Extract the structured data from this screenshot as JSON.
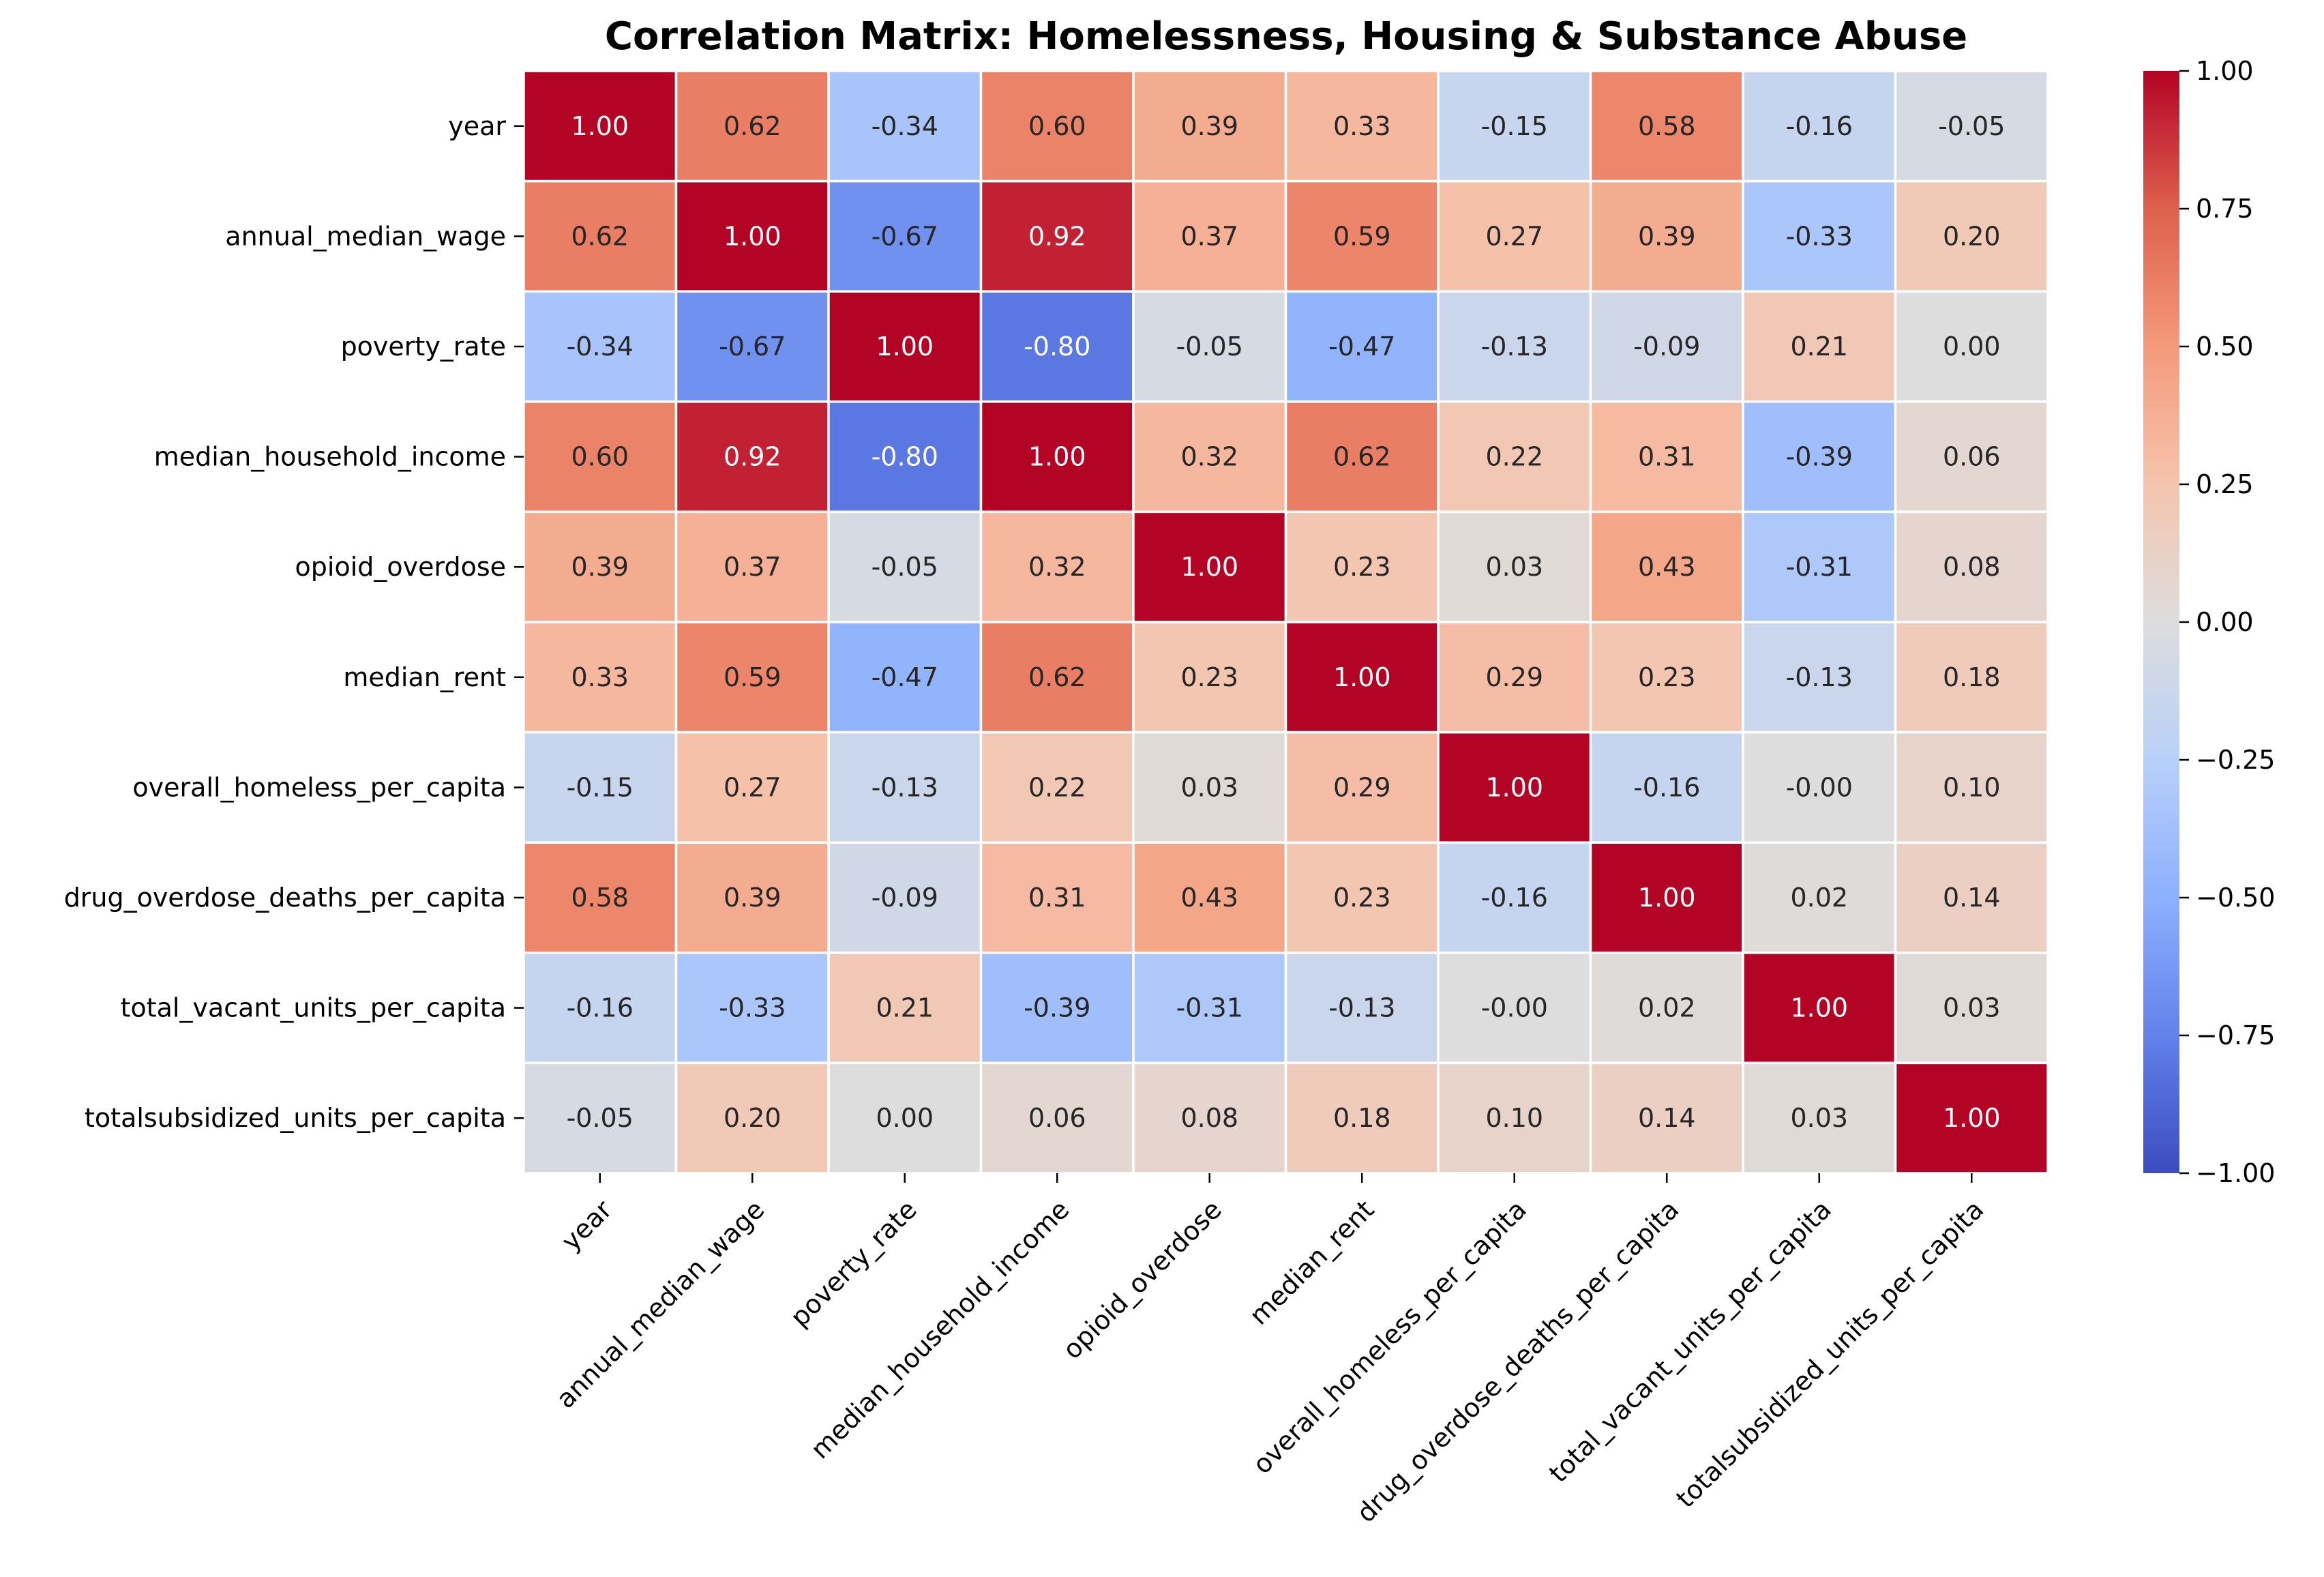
{
  "chart_data": {
    "type": "heatmap",
    "title": "Correlation Matrix: Homelessness, Housing & Substance Abuse",
    "variables": [
      "year",
      "annual_median_wage",
      "poverty_rate",
      "median_household_income",
      "opioid_overdose",
      "median_rent",
      "overall_homeless_per_capita",
      "drug_overdose_deaths_per_capita",
      "total_vacant_units_per_capita",
      "totalsubsidized_units_per_capita"
    ],
    "matrix": [
      [
        1.0,
        0.62,
        -0.34,
        0.6,
        0.39,
        0.33,
        -0.15,
        0.58,
        -0.16,
        -0.05
      ],
      [
        0.62,
        1.0,
        -0.67,
        0.92,
        0.37,
        0.59,
        0.27,
        0.39,
        -0.33,
        0.2
      ],
      [
        -0.34,
        -0.67,
        1.0,
        -0.8,
        -0.05,
        -0.47,
        -0.13,
        -0.09,
        0.21,
        0.0
      ],
      [
        0.6,
        0.92,
        -0.8,
        1.0,
        0.32,
        0.62,
        0.22,
        0.31,
        -0.39,
        0.06
      ],
      [
        0.39,
        0.37,
        -0.05,
        0.32,
        1.0,
        0.23,
        0.03,
        0.43,
        -0.31,
        0.08
      ],
      [
        0.33,
        0.59,
        -0.47,
        0.62,
        0.23,
        1.0,
        0.29,
        0.23,
        -0.13,
        0.18
      ],
      [
        -0.15,
        0.27,
        -0.13,
        0.22,
        0.03,
        0.29,
        1.0,
        -0.16,
        -0.0,
        0.1
      ],
      [
        0.58,
        0.39,
        -0.09,
        0.31,
        0.43,
        0.23,
        -0.16,
        1.0,
        0.02,
        0.14
      ],
      [
        -0.16,
        -0.33,
        0.21,
        -0.39,
        -0.31,
        -0.13,
        -0.0,
        0.02,
        1.0,
        0.03
      ],
      [
        -0.05,
        0.2,
        0.0,
        0.06,
        0.08,
        0.18,
        0.1,
        0.14,
        0.03,
        1.0
      ]
    ],
    "cell_labels": [
      [
        "1.00",
        "0.62",
        "-0.34",
        "0.60",
        "0.39",
        "0.33",
        "-0.15",
        "0.58",
        "-0.16",
        "-0.05"
      ],
      [
        "0.62",
        "1.00",
        "-0.67",
        "0.92",
        "0.37",
        "0.59",
        "0.27",
        "0.39",
        "-0.33",
        "0.20"
      ],
      [
        "-0.34",
        "-0.67",
        "1.00",
        "-0.80",
        "-0.05",
        "-0.47",
        "-0.13",
        "-0.09",
        "0.21",
        "0.00"
      ],
      [
        "0.60",
        "0.92",
        "-0.80",
        "1.00",
        "0.32",
        "0.62",
        "0.22",
        "0.31",
        "-0.39",
        "0.06"
      ],
      [
        "0.39",
        "0.37",
        "-0.05",
        "0.32",
        "1.00",
        "0.23",
        "0.03",
        "0.43",
        "-0.31",
        "0.08"
      ],
      [
        "0.33",
        "0.59",
        "-0.47",
        "0.62",
        "0.23",
        "1.00",
        "0.29",
        "0.23",
        "-0.13",
        "0.18"
      ],
      [
        "-0.15",
        "0.27",
        "-0.13",
        "0.22",
        "0.03",
        "0.29",
        "1.00",
        "-0.16",
        "-0.00",
        "0.10"
      ],
      [
        "0.58",
        "0.39",
        "-0.09",
        "0.31",
        "0.43",
        "0.23",
        "-0.16",
        "1.00",
        "0.02",
        "0.14"
      ],
      [
        "-0.16",
        "-0.33",
        "0.21",
        "-0.39",
        "-0.31",
        "-0.13",
        "-0.00",
        "0.02",
        "1.00",
        "0.03"
      ],
      [
        "-0.05",
        "0.20",
        "0.00",
        "0.06",
        "0.08",
        "0.18",
        "0.10",
        "0.14",
        "0.03",
        "1.00"
      ]
    ],
    "colormap": "coolwarm",
    "vmin": -1.0,
    "vmax": 1.0,
    "colorbar_ticks": [
      1.0,
      0.75,
      0.5,
      0.25,
      0.0,
      -0.25,
      -0.5,
      -0.75,
      -1.0
    ],
    "colorbar_tick_labels": [
      "1.00",
      "0.75",
      "0.50",
      "0.25",
      "0.00",
      "−0.25",
      "−0.50",
      "−0.75",
      "−1.00"
    ],
    "colorbar_position": "right",
    "grid": true,
    "grid_color": "#ffffff"
  }
}
